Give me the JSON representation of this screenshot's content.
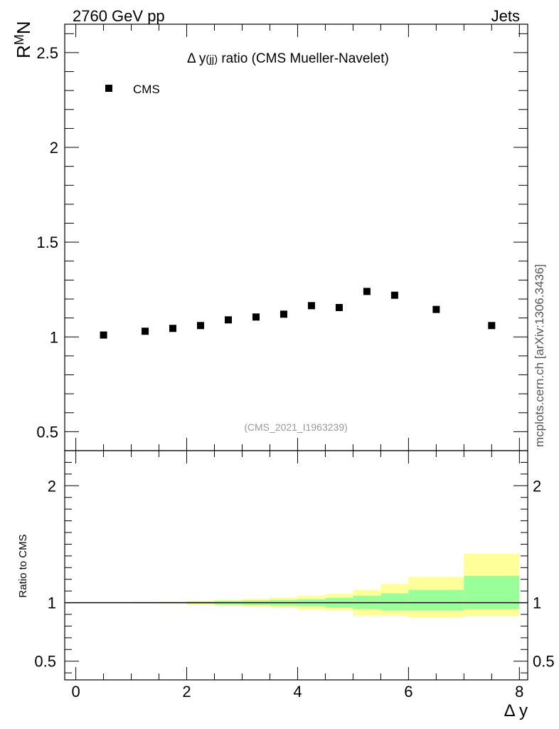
{
  "header": {
    "energy_label": "2760 GeV pp",
    "process_label": "Jets",
    "side_label": "mcplots.cern.ch [arXiv:1306.3436]"
  },
  "main_plot": {
    "title_prefix": "Δ y",
    "title_sub": "(jj)",
    "title_rest": " ratio (CMS Mueller-Navelet)",
    "ylabel_main": "R",
    "ylabel_sup": "M",
    "ylabel_end": "N",
    "watermark": "(CMS_2021_I1963239)",
    "legend": [
      {
        "name": "CMS",
        "marker": "square",
        "color": "#000000"
      }
    ],
    "y_tick_labels": [
      "0.5",
      "1",
      "1.5",
      "2",
      "2.5"
    ]
  },
  "ratio_plot": {
    "ylabel": "Ratio to CMS",
    "y_tick_labels_left": [
      "0.5",
      "1",
      "2"
    ],
    "y_tick_labels_right": [
      "0.5",
      "1",
      "2"
    ],
    "x_tick_labels": [
      "0",
      "2",
      "4",
      "6",
      "8"
    ],
    "xlabel": "Δ y"
  },
  "colors": {
    "band_inner": "#99ff99",
    "band_outer": "#ffff99",
    "marker": "#000000"
  },
  "chart_data": [
    {
      "type": "scatter",
      "title": "Δ y(jj) ratio (CMS Mueller-Navelet)",
      "xlabel": "Δ y",
      "ylabel": "R^M N",
      "xlim": [
        -0.2,
        8.15
      ],
      "ylim": [
        0.4,
        2.65
      ],
      "legend_position": "top-left",
      "series": [
        {
          "name": "CMS",
          "x": [
            0.5,
            1.25,
            1.75,
            2.25,
            2.75,
            3.25,
            3.75,
            4.25,
            4.75,
            5.25,
            5.75,
            6.5,
            7.5
          ],
          "y": [
            1.01,
            1.03,
            1.045,
            1.06,
            1.09,
            1.105,
            1.12,
            1.165,
            1.155,
            1.24,
            1.22,
            1.145,
            1.06
          ]
        }
      ]
    },
    {
      "type": "area",
      "title": "",
      "xlabel": "Δ y",
      "ylabel": "Ratio to CMS",
      "xlim": [
        -0.2,
        8.15
      ],
      "ylim": [
        0.34,
        2.3
      ],
      "reference_line": 1,
      "bins": [
        {
          "x_low": 0.0,
          "x_high": 1.0,
          "inner": [
            0.996,
            1.004
          ],
          "outer": [
            0.994,
            1.006
          ]
        },
        {
          "x_low": 1.0,
          "x_high": 1.5,
          "inner": [
            0.995,
            1.005
          ],
          "outer": [
            0.992,
            1.008
          ]
        },
        {
          "x_low": 1.5,
          "x_high": 2.0,
          "inner": [
            0.994,
            1.006
          ],
          "outer": [
            0.99,
            1.01
          ]
        },
        {
          "x_low": 2.0,
          "x_high": 2.5,
          "inner": [
            0.99,
            1.01
          ],
          "outer": [
            0.985,
            1.015
          ]
        },
        {
          "x_low": 2.5,
          "x_high": 3.0,
          "inner": [
            0.985,
            1.015
          ],
          "outer": [
            0.975,
            1.025
          ]
        },
        {
          "x_low": 3.0,
          "x_high": 3.5,
          "inner": [
            0.98,
            1.02
          ],
          "outer": [
            0.965,
            1.035
          ]
        },
        {
          "x_low": 3.5,
          "x_high": 4.0,
          "inner": [
            0.975,
            1.025
          ],
          "outer": [
            0.955,
            1.045
          ]
        },
        {
          "x_low": 4.0,
          "x_high": 4.5,
          "inner": [
            0.97,
            1.03
          ],
          "outer": [
            0.94,
            1.06
          ]
        },
        {
          "x_low": 4.5,
          "x_high": 5.0,
          "inner": [
            0.96,
            1.04
          ],
          "outer": [
            0.93,
            1.075
          ]
        },
        {
          "x_low": 5.0,
          "x_high": 5.5,
          "inner": [
            0.945,
            1.06
          ],
          "outer": [
            0.89,
            1.11
          ]
        },
        {
          "x_low": 5.5,
          "x_high": 6.0,
          "inner": [
            0.935,
            1.08
          ],
          "outer": [
            0.89,
            1.16
          ]
        },
        {
          "x_low": 6.0,
          "x_high": 7.0,
          "inner": [
            0.935,
            1.11
          ],
          "outer": [
            0.875,
            1.22
          ]
        },
        {
          "x_low": 7.0,
          "x_high": 8.0,
          "inner": [
            0.945,
            1.23
          ],
          "outer": [
            0.885,
            1.42
          ]
        }
      ]
    }
  ]
}
